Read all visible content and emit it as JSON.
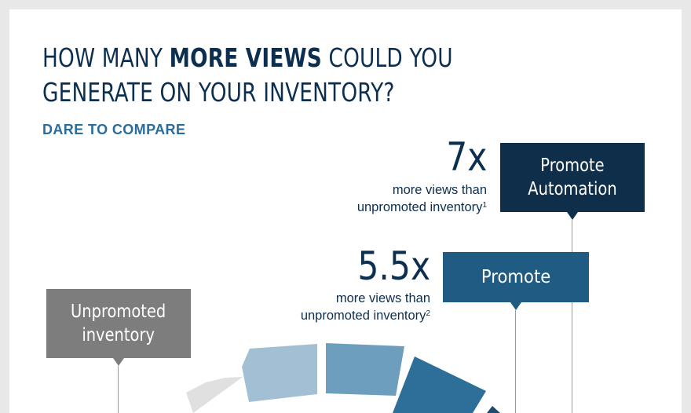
{
  "title": {
    "line1_pre": "HOW MANY ",
    "line1_bold": "MORE VIEWS",
    "line1_post": " COULD YOU",
    "line2": "GENERATE ON YOUR INVENTORY?"
  },
  "subtitle": "DARE TO COMPARE",
  "stats": {
    "automation": {
      "multiplier": "7x",
      "line1": "more views than",
      "line2": "unpromoted inventory",
      "footnote": "1",
      "label_line1": "Promote",
      "label_line2": "Automation"
    },
    "promote": {
      "multiplier": "5.5x",
      "line1": "more views than",
      "line2": "unpromoted inventory",
      "footnote": "2",
      "label": "Promote"
    },
    "unpromoted": {
      "label_line1": "Unpromoted",
      "label_line2": "inventory"
    }
  },
  "colors": {
    "navy": "#0f2e4a",
    "blue": "#1f5b82",
    "gray": "#7d7d7d",
    "title": "#0d2f4f",
    "accent": "#2a6c9b"
  }
}
